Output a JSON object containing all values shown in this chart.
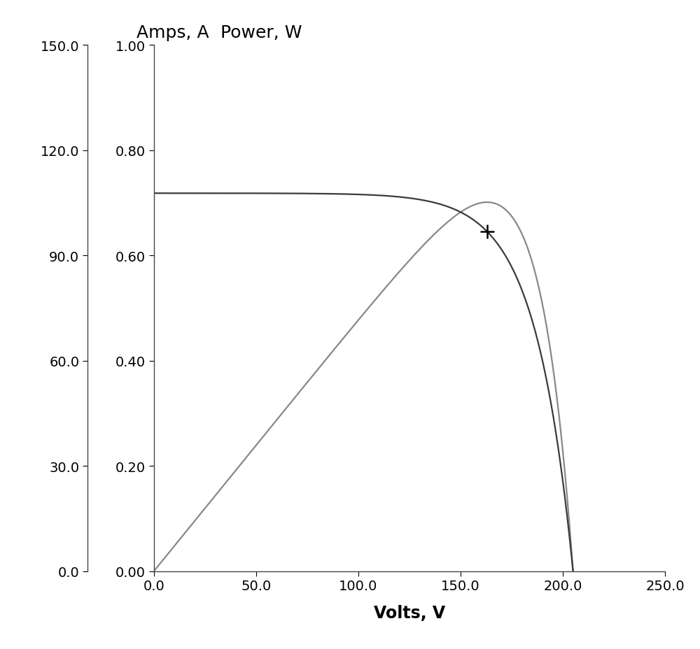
{
  "title_left": "Amps, A",
  "title_right": "Power, W",
  "xlabel": "Volts, V",
  "xlim": [
    0.0,
    250.0
  ],
  "ylim_current": [
    0.0,
    1.0
  ],
  "ylim_power": [
    0.0,
    150.0
  ],
  "xticks": [
    0.0,
    50.0,
    100.0,
    150.0,
    200.0,
    250.0
  ],
  "yticks_left": [
    0.0,
    0.2,
    0.4,
    0.6,
    0.8,
    1.0
  ],
  "yticks_right": [
    0.0,
    30.0,
    60.0,
    90.0,
    120.0,
    150.0
  ],
  "line_color_iv": "#3a3a3a",
  "line_color_pv": "#888888",
  "line_width": 1.6,
  "background_color": "#ffffff",
  "marker_cross_x": 163.0,
  "marker_cross_y_amps": 0.645,
  "Voc": 205.0,
  "Isc": 0.718,
  "Vmp": 163.0,
  "Imp": 0.645,
  "figwidth": 10.0,
  "figheight": 9.29,
  "font_size_labels": 17,
  "font_size_ticks": 14,
  "font_size_toplabels": 18
}
